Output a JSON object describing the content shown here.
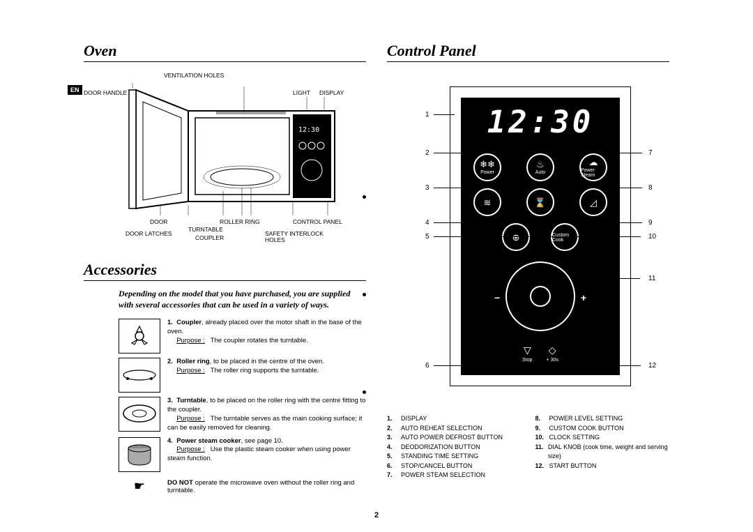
{
  "en_badge": "EN",
  "page_number": "2",
  "oven": {
    "title": "Oven",
    "labels": {
      "ventilation_holes": "VENTILATION HOLES",
      "door_handle": "DOOR HANDLE",
      "light": "LIGHT",
      "display": "DISPLAY",
      "door": "DOOR",
      "roller_ring": "ROLLER RING",
      "control_panel": "CONTROL PANEL",
      "door_latches": "DOOR LATCHES",
      "turntable": "TURNTABLE",
      "coupler": "COUPLER",
      "safety_interlock_holes": "SAFETY INTERLOCK HOLES"
    }
  },
  "accessories": {
    "title": "Accessories",
    "intro": "Depending on the model that you have purchased, you are supplied with several accessories that can be used in a variety of ways.",
    "items": [
      {
        "num": "1.",
        "name": "Coupler",
        "desc": ", already placed over the motor shaft in the base of the oven.",
        "purpose_label": "Purpose :",
        "purpose": "The coupler rotates the turntable."
      },
      {
        "num": "2.",
        "name": "Roller ring",
        "desc": ", to be placed in the centre of the oven.",
        "purpose_label": "Purpose :",
        "purpose": "The roller ring supports the turntable."
      },
      {
        "num": "3.",
        "name": "Turntable",
        "desc": ", to be placed on the roller ring with the centre fitting to the coupler.",
        "purpose_label": "Purpose :",
        "purpose": "The turntable serves as the main cooking surface; it can be easily removed for cleaning."
      },
      {
        "num": "4.",
        "name": "Power steam cooker",
        "desc": ", see page 10.",
        "purpose_label": "Purpose :",
        "purpose": "Use the plastic steam cooker when using power steam function."
      }
    ],
    "donot_bold": "DO NOT",
    "donot_rest": " operate the microwave oven without the roller ring and turntable."
  },
  "control_panel": {
    "title": "Control Panel",
    "display_value": "12:30",
    "callouts_left": [
      "1",
      "2",
      "3",
      "4",
      "5",
      "6"
    ],
    "callouts_right": [
      "7",
      "8",
      "9",
      "10",
      "11",
      "12"
    ],
    "row1": [
      {
        "icon": "❄❄",
        "label": "Power"
      },
      {
        "icon": "♨",
        "label": "Auto"
      },
      {
        "icon": "☁",
        "label": "Power Steam"
      }
    ],
    "row2": [
      {
        "icon": "≋",
        "label": ""
      },
      {
        "icon": "⌛",
        "label": ""
      },
      {
        "icon": "◿",
        "label": ""
      }
    ],
    "row3": [
      {
        "icon": "⊕",
        "label": ""
      },
      {
        "icon": "",
        "label": "Custom Cook"
      }
    ],
    "stop_label": "Stop",
    "start_label": "+ 30s",
    "legend": [
      {
        "n": "1.",
        "t": "DISPLAY"
      },
      {
        "n": "2.",
        "t": "AUTO REHEAT SELECTION"
      },
      {
        "n": "3.",
        "t": "AUTO POWER DEFROST BUTTON"
      },
      {
        "n": "4.",
        "t": "DEODORIZATION BUTTON"
      },
      {
        "n": "5.",
        "t": "STANDING TIME SETTING"
      },
      {
        "n": "6.",
        "t": "STOP/CANCEL BUTTON"
      },
      {
        "n": "7.",
        "t": "POWER STEAM SELECTION"
      },
      {
        "n": "8.",
        "t": "POWER LEVEL SETTING"
      },
      {
        "n": "9.",
        "t": "CUSTOM COOK BUTTON"
      },
      {
        "n": "10.",
        "t": "CLOCK SETTING"
      },
      {
        "n": "11.",
        "t": "DIAL KNOB (cook time, weight and serving size)"
      },
      {
        "n": "12.",
        "t": "START BUTTON"
      }
    ]
  }
}
